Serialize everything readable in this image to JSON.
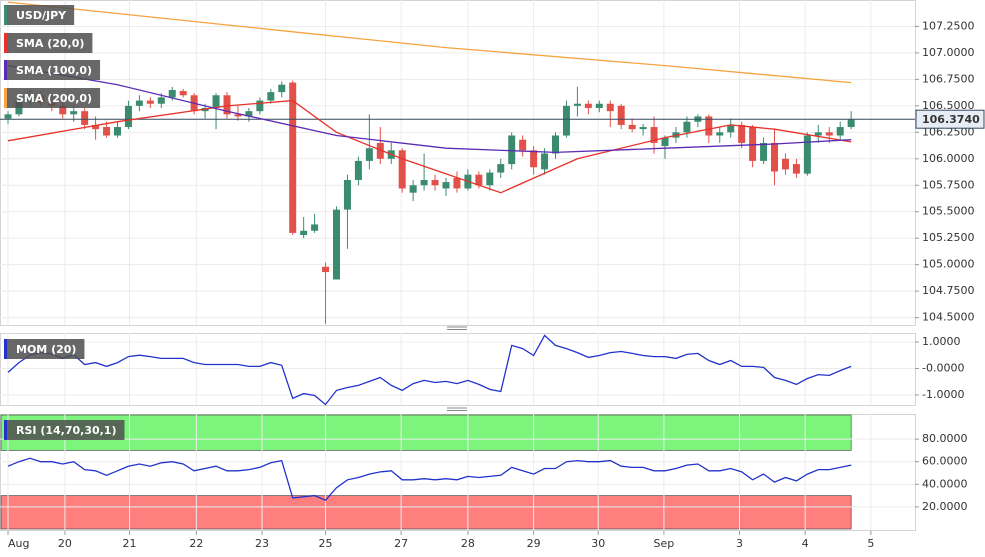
{
  "chart_data": [
    {
      "type": "candlestick",
      "name": "USD/JPY",
      "up_color": "#3b8c6e",
      "down_color": "#e2504a",
      "xlim": [
        -0.73,
        82.83
      ],
      "ylim": [
        104.43,
        107.5
      ],
      "grid": true,
      "xticks": [
        {
          "value": 0,
          "label": "Aug"
        },
        {
          "value": 5.2,
          "label": "20"
        },
        {
          "value": 11.1,
          "label": "21"
        },
        {
          "value": 17.2,
          "label": "22"
        },
        {
          "value": 23.2,
          "label": "23"
        },
        {
          "value": 29,
          "label": "25"
        },
        {
          "value": 35.9,
          "label": "27"
        },
        {
          "value": 42,
          "label": "28"
        },
        {
          "value": 48,
          "label": "29"
        },
        {
          "value": 53.9,
          "label": "30"
        },
        {
          "value": 59.9,
          "label": "Sep"
        },
        {
          "value": 66.8,
          "label": "3"
        },
        {
          "value": 72.8,
          "label": "4"
        },
        {
          "value": 78.8,
          "label": "5"
        }
      ],
      "yticks": [
        {
          "value": 104.5,
          "label": "104.5000"
        },
        {
          "value": 104.75,
          "label": "104.7500"
        },
        {
          "value": 105,
          "label": "105.0000"
        },
        {
          "value": 105.25,
          "label": "105.2500"
        },
        {
          "value": 105.5,
          "label": "105.5000"
        },
        {
          "value": 105.75,
          "label": "105.7500"
        },
        {
          "value": 106,
          "label": "106.0000"
        },
        {
          "value": 106.25,
          "label": "106.2500"
        },
        {
          "value": 106.5,
          "label": "106.5000"
        },
        {
          "value": 106.75,
          "label": "106.7500"
        },
        {
          "value": 107,
          "label": "107.0000"
        },
        {
          "value": 107.25,
          "label": "107.2500"
        }
      ],
      "last_price": {
        "value": 106.374,
        "label": "106.3740"
      },
      "candles": [
        [
          106.38,
          106.45,
          106.33,
          106.42
        ],
        [
          106.42,
          106.58,
          106.4,
          106.55
        ],
        [
          106.55,
          106.65,
          106.5,
          106.6
        ],
        [
          106.6,
          106.64,
          106.5,
          106.53
        ],
        [
          106.53,
          106.6,
          106.45,
          106.5
        ],
        [
          106.5,
          106.55,
          106.38,
          106.42
        ],
        [
          106.42,
          106.5,
          106.35,
          106.45
        ],
        [
          106.45,
          106.48,
          106.28,
          106.32
        ],
        [
          106.32,
          106.4,
          106.18,
          106.28
        ],
        [
          106.3,
          106.35,
          106.2,
          106.22
        ],
        [
          106.22,
          106.35,
          106.2,
          106.3
        ],
        [
          106.3,
          106.55,
          106.28,
          106.5
        ],
        [
          106.5,
          106.6,
          106.45,
          106.55
        ],
        [
          106.55,
          106.58,
          106.48,
          106.52
        ],
        [
          106.52,
          106.62,
          106.48,
          106.58
        ],
        [
          106.58,
          106.68,
          106.55,
          106.65
        ],
        [
          106.64,
          106.66,
          106.58,
          106.6
        ],
        [
          106.6,
          106.62,
          106.42,
          106.45
        ],
        [
          106.45,
          106.52,
          106.38,
          106.48
        ],
        [
          106.48,
          106.62,
          106.28,
          106.6
        ],
        [
          106.6,
          106.63,
          106.38,
          106.42
        ],
        [
          106.42,
          106.5,
          106.36,
          106.4
        ],
        [
          106.4,
          106.48,
          106.35,
          106.45
        ],
        [
          106.45,
          106.58,
          106.42,
          106.55
        ],
        [
          106.55,
          106.66,
          106.52,
          106.63
        ],
        [
          106.63,
          106.73,
          106.58,
          106.7
        ],
        [
          106.72,
          106.74,
          105.28,
          105.3
        ],
        [
          105.28,
          105.45,
          105.25,
          105.32
        ],
        [
          105.32,
          105.48,
          105.3,
          105.38
        ],
        [
          104.98,
          105.02,
          104.44,
          104.93
        ],
        [
          104.86,
          105.55,
          104.86,
          105.52
        ],
        [
          105.52,
          105.85,
          105.15,
          105.8
        ],
        [
          105.8,
          106.02,
          105.75,
          105.98
        ],
        [
          105.98,
          106.42,
          105.9,
          106.1
        ],
        [
          106.15,
          106.3,
          105.95,
          106.0
        ],
        [
          106.0,
          106.15,
          105.95,
          106.08
        ],
        [
          106.08,
          106.1,
          105.68,
          105.72
        ],
        [
          105.68,
          105.8,
          105.6,
          105.75
        ],
        [
          105.75,
          106.05,
          105.7,
          105.8
        ],
        [
          105.8,
          105.85,
          105.7,
          105.75
        ],
        [
          105.72,
          105.82,
          105.65,
          105.78
        ],
        [
          105.82,
          105.88,
          105.68,
          105.72
        ],
        [
          105.72,
          105.9,
          105.7,
          105.85
        ],
        [
          105.85,
          105.88,
          105.72,
          105.75
        ],
        [
          105.75,
          105.9,
          105.7,
          105.87
        ],
        [
          105.87,
          106.0,
          105.82,
          105.95
        ],
        [
          105.95,
          106.25,
          105.9,
          106.22
        ],
        [
          106.18,
          106.22,
          106.02,
          106.08
        ],
        [
          106.08,
          106.12,
          105.85,
          105.92
        ],
        [
          105.9,
          106.1,
          105.85,
          106.05
        ],
        [
          106.05,
          106.25,
          106.0,
          106.22
        ],
        [
          106.22,
          106.55,
          106.2,
          106.5
        ],
        [
          106.5,
          106.68,
          106.4,
          106.52
        ],
        [
          106.52,
          106.55,
          106.42,
          106.48
        ],
        [
          106.48,
          106.55,
          106.44,
          106.52
        ],
        [
          106.52,
          106.55,
          106.3,
          106.45
        ],
        [
          106.5,
          106.52,
          106.28,
          106.32
        ],
        [
          106.32,
          106.38,
          106.25,
          106.28
        ],
        [
          106.28,
          106.33,
          106.22,
          106.3
        ],
        [
          106.3,
          106.4,
          106.05,
          106.15
        ],
        [
          106.12,
          106.22,
          106.0,
          106.2
        ],
        [
          106.2,
          106.3,
          106.15,
          106.25
        ],
        [
          106.25,
          106.4,
          106.2,
          106.35
        ],
        [
          106.35,
          106.42,
          106.3,
          106.4
        ],
        [
          106.4,
          106.42,
          106.15,
          106.22
        ],
        [
          106.22,
          106.3,
          106.15,
          106.25
        ],
        [
          106.25,
          106.38,
          106.2,
          106.32
        ],
        [
          106.32,
          106.35,
          106.1,
          106.15
        ],
        [
          106.3,
          106.32,
          105.92,
          105.98
        ],
        [
          105.98,
          106.2,
          105.95,
          106.15
        ],
        [
          106.15,
          106.28,
          105.75,
          105.88
        ],
        [
          106.0,
          106.05,
          105.85,
          105.9
        ],
        [
          105.95,
          106.0,
          105.82,
          105.86
        ],
        [
          105.86,
          106.25,
          105.84,
          106.22
        ],
        [
          106.22,
          106.32,
          106.15,
          106.25
        ],
        [
          106.25,
          106.3,
          106.15,
          106.22
        ],
        [
          106.22,
          106.35,
          106.18,
          106.3
        ],
        [
          106.3,
          106.45,
          106.28,
          106.37
        ]
      ],
      "series": [
        {
          "name": "SMA (20,0)",
          "color": "#e8312a",
          "x": [
            0,
            10,
            20,
            26,
            30,
            36,
            45,
            52,
            60,
            66,
            70,
            77
          ],
          "values": [
            106.17,
            106.35,
            106.5,
            106.55,
            106.25,
            106.0,
            105.68,
            106.0,
            106.2,
            106.32,
            106.28,
            106.16
          ]
        },
        {
          "name": "SMA (100,0)",
          "color": "#5b2bb5",
          "x": [
            0,
            10,
            20,
            30,
            40,
            50,
            60,
            70,
            77
          ],
          "values": [
            106.88,
            106.7,
            106.45,
            106.22,
            106.1,
            106.06,
            106.1,
            106.14,
            106.18
          ]
        },
        {
          "name": "SMA (200,0)",
          "color": "#f5a340",
          "x": [
            0,
            26,
            40,
            60,
            77
          ],
          "values": [
            107.48,
            107.2,
            107.05,
            106.88,
            106.72
          ]
        }
      ]
    },
    {
      "type": "line",
      "ylim": [
        -1.38,
        1.34
      ],
      "yticks": [
        {
          "value": -1,
          "label": "-1.0000"
        },
        {
          "value": 0,
          "label": "-0.0000"
        },
        {
          "value": 1,
          "label": "1.0000"
        }
      ],
      "series": [
        {
          "name": "MOM (20)",
          "color": "#2233cc",
          "values": [
            -0.15,
            0.22,
            0.5,
            0.6,
            0.55,
            0.38,
            0.52,
            0.15,
            0.22,
            0.08,
            0.22,
            0.45,
            0.5,
            0.45,
            0.38,
            0.38,
            0.38,
            0.22,
            0.15,
            0.15,
            0.15,
            0.15,
            0.08,
            0.08,
            0.22,
            0.12,
            -1.13,
            -0.95,
            -1.02,
            -1.36,
            -0.83,
            -0.72,
            -0.64,
            -0.49,
            -0.34,
            -0.64,
            -0.83,
            -0.57,
            -0.45,
            -0.53,
            -0.49,
            -0.57,
            -0.45,
            -0.6,
            -0.79,
            -0.87,
            0.87,
            0.75,
            0.49,
            1.25,
            0.87,
            0.75,
            0.6,
            0.42,
            0.49,
            0.6,
            0.64,
            0.57,
            0.49,
            0.45,
            0.45,
            0.38,
            0.53,
            0.57,
            0.3,
            0.15,
            0.3,
            0.08,
            0.08,
            0.04,
            -0.34,
            -0.45,
            -0.6,
            -0.38,
            -0.23,
            -0.26,
            -0.08,
            0.08
          ]
        }
      ]
    },
    {
      "type": "line",
      "ylim": [
        -0.4,
        102.2
      ],
      "overbought": 70,
      "oversold": 30,
      "overbought_color": "#7df57d",
      "oversold_color": "#ff7f7f",
      "yticks": [
        {
          "value": 20,
          "label": "20.0000"
        },
        {
          "value": 40,
          "label": "40.0000"
        },
        {
          "value": 60,
          "label": "60.0000"
        },
        {
          "value": 80,
          "label": "80.0000"
        }
      ],
      "series": [
        {
          "name": "RSI (14,70,30,1)",
          "color": "#2233cc",
          "values": [
            56,
            60,
            63,
            60,
            60,
            58,
            60,
            53,
            52,
            48,
            52,
            56,
            58,
            56,
            59,
            60,
            58,
            52,
            54,
            56,
            52,
            52,
            53,
            55,
            59,
            61,
            28,
            29,
            30,
            26,
            37,
            44,
            46,
            49,
            51,
            52,
            44,
            44,
            45,
            44,
            45,
            44,
            47,
            46,
            47,
            48,
            55,
            52,
            49,
            54,
            54,
            60,
            61,
            60,
            60,
            61,
            56,
            55,
            55,
            52,
            52,
            54,
            57,
            58,
            52,
            52,
            54,
            51,
            44,
            49,
            42,
            46,
            43,
            49,
            53,
            53,
            55,
            57
          ]
        }
      ]
    }
  ]
}
